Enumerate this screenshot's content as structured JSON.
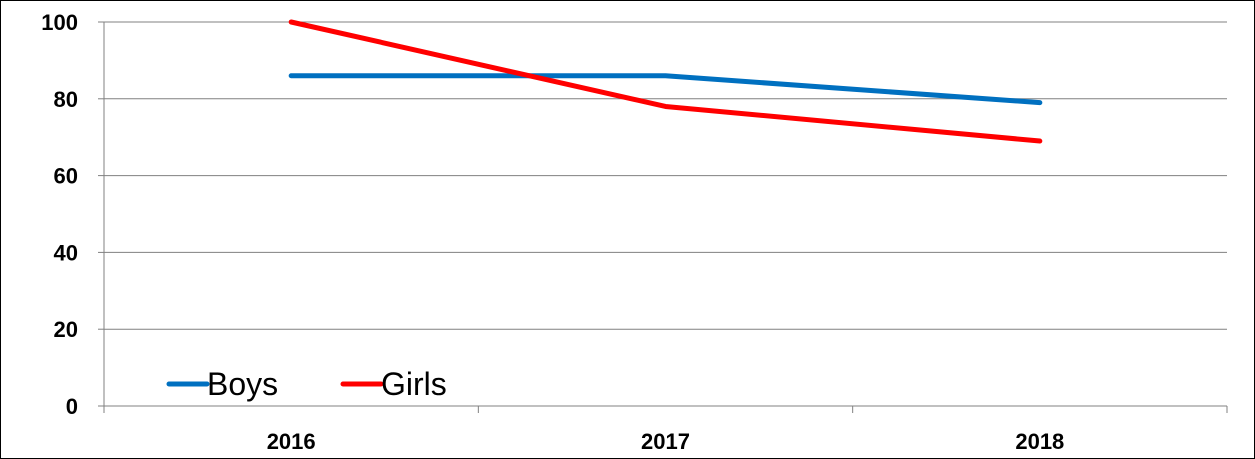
{
  "chart_data": {
    "type": "line",
    "categories": [
      "2016",
      "2017",
      "2018"
    ],
    "series": [
      {
        "name": "Boys",
        "values": [
          86,
          86,
          79
        ],
        "color": "#0070C0"
      },
      {
        "name": "Girls",
        "values": [
          100,
          78,
          69
        ],
        "color": "#FF0000"
      }
    ],
    "ylim": [
      0,
      100
    ],
    "yticks": [
      "0",
      "20",
      "40",
      "60",
      "80",
      "100"
    ],
    "grid": true,
    "legend_position": "bottom-left",
    "axis_color": "#808080",
    "grid_color": "#808080"
  }
}
